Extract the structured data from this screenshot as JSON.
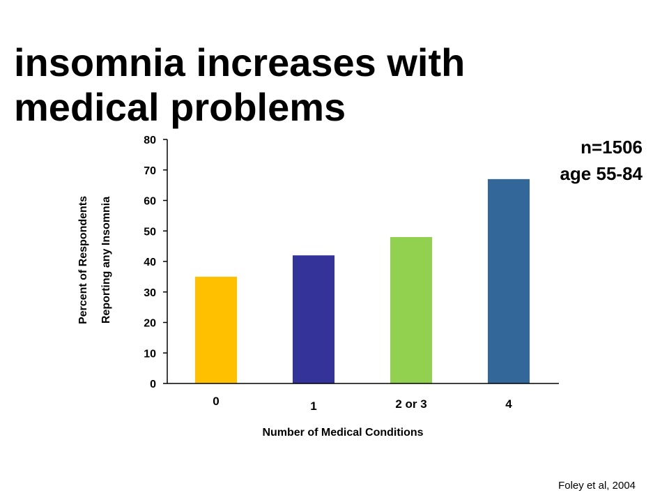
{
  "slide": {
    "title_line1": "insomnia increases with",
    "title_line2": "medical problems",
    "sample_size": "n=1506",
    "age_range": "age 55-84",
    "source": "Foley et al, 2004"
  },
  "chart_data": {
    "type": "bar",
    "categories": [
      "0",
      "1",
      "2 or 3",
      "4"
    ],
    "values": [
      35,
      42,
      48,
      67
    ],
    "colors": [
      "#FFC000",
      "#333399",
      "#92D050",
      "#336699"
    ],
    "title": "",
    "xlabel": "Number of Medical Conditions",
    "ylabel_line1": "Percent of Respondents",
    "ylabel_line2": "Reporting any Insomnia",
    "ylim": [
      0,
      80
    ],
    "yticks": [
      0,
      10,
      20,
      30,
      40,
      50,
      60,
      70,
      80
    ],
    "grid": false,
    "legend": "none"
  }
}
